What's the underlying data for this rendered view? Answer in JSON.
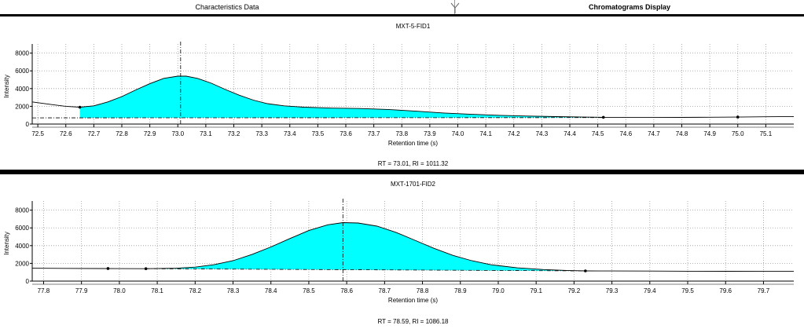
{
  "tabs": [
    {
      "label": "Characteristics Data"
    },
    {
      "label": "Chromatograms Display"
    }
  ],
  "chart_data": [
    {
      "type": "area",
      "title": "MXT-5-FID1",
      "xlabel": "Retention time (s)",
      "ylabel": "Intensity",
      "footer": "RT = 73.01, RI = 1011.32",
      "xlim": [
        72.48,
        75.2
      ],
      "ylim": [
        0,
        8500
      ],
      "x_ticks": [
        72.5,
        72.6,
        72.7,
        72.8,
        72.9,
        73.0,
        73.1,
        73.2,
        73.3,
        73.4,
        73.5,
        73.6,
        73.7,
        73.8,
        73.9,
        74.0,
        74.1,
        74.2,
        74.3,
        74.4,
        74.5,
        74.6,
        74.7,
        74.8,
        74.9,
        75.0,
        75.1
      ],
      "x_tick_labels": [
        "72.5",
        "72.6",
        "72.7",
        "72.8",
        "72.9",
        "73.0",
        "73.1",
        "73.2",
        "73.3",
        "73.4",
        "73.5",
        "73.6",
        "73.7",
        "73.8",
        "73.9",
        "74.0",
        "74.1",
        "74.2",
        "74.3",
        "74.4",
        "74.5",
        "74.6",
        "74.7",
        "74.8",
        "74.9",
        "75.0",
        "75.1"
      ],
      "y_ticks": [
        0,
        2000,
        4000,
        6000,
        8000
      ],
      "y_tick_labels": [
        "0",
        "2000",
        "4000",
        "6000",
        "8000"
      ],
      "grid": true,
      "peak_rt": 73.01,
      "fill_range": [
        72.65,
        74.52
      ],
      "fill_color": "#00ffff",
      "baseline": [
        [
          72.48,
          700
        ],
        [
          74.52,
          730
        ]
      ],
      "signal": [
        [
          72.48,
          2500
        ],
        [
          72.55,
          2200
        ],
        [
          72.6,
          2000
        ],
        [
          72.65,
          1900
        ],
        [
          72.7,
          2050
        ],
        [
          72.75,
          2500
        ],
        [
          72.8,
          3100
        ],
        [
          72.85,
          3850
        ],
        [
          72.9,
          4550
        ],
        [
          72.95,
          5150
        ],
        [
          73.0,
          5400
        ],
        [
          73.03,
          5400
        ],
        [
          73.07,
          5150
        ],
        [
          73.12,
          4600
        ],
        [
          73.17,
          3900
        ],
        [
          73.22,
          3250
        ],
        [
          73.27,
          2700
        ],
        [
          73.32,
          2300
        ],
        [
          73.38,
          2050
        ],
        [
          73.45,
          1900
        ],
        [
          73.55,
          1800
        ],
        [
          73.65,
          1750
        ],
        [
          73.75,
          1650
        ],
        [
          73.85,
          1450
        ],
        [
          73.95,
          1250
        ],
        [
          74.05,
          1100
        ],
        [
          74.15,
          980
        ],
        [
          74.25,
          900
        ],
        [
          74.35,
          840
        ],
        [
          74.45,
          790
        ],
        [
          74.52,
          760
        ],
        [
          74.6,
          740
        ],
        [
          74.7,
          740
        ],
        [
          74.8,
          750
        ],
        [
          74.9,
          770
        ],
        [
          75.0,
          790
        ],
        [
          75.1,
          820
        ],
        [
          75.2,
          850
        ]
      ],
      "markers": [
        [
          72.65,
          1900
        ],
        [
          74.52,
          760
        ],
        [
          75.0,
          790
        ]
      ]
    },
    {
      "type": "area",
      "title": "MXT-1701-FID2",
      "xlabel": "Retention time (s)",
      "ylabel": "Intensity",
      "footer": "RT = 78.59, RI = 1086.18",
      "xlim": [
        77.77,
        79.78
      ],
      "ylim": [
        0,
        8500
      ],
      "x_ticks": [
        77.8,
        77.9,
        78.0,
        78.1,
        78.2,
        78.3,
        78.4,
        78.5,
        78.6,
        78.7,
        78.8,
        78.9,
        79.0,
        79.1,
        79.2,
        79.3,
        79.4,
        79.5,
        79.6,
        79.7
      ],
      "x_tick_labels": [
        "77.8",
        "77.9",
        "78.0",
        "78.1",
        "78.2",
        "78.3",
        "78.4",
        "78.5",
        "78.6",
        "78.7",
        "78.8",
        "78.9",
        "79.0",
        "79.1",
        "79.2",
        "79.3",
        "79.4",
        "79.5",
        "79.6",
        "79.7"
      ],
      "y_ticks": [
        0,
        2000,
        4000,
        6000,
        8000
      ],
      "y_tick_labels": [
        "0",
        "2000",
        "4000",
        "6000",
        "8000"
      ],
      "grid": true,
      "peak_rt": 78.59,
      "fill_range": [
        78.07,
        79.23
      ],
      "fill_color": "#00ffff",
      "baseline": [
        [
          78.07,
          1400
        ],
        [
          79.23,
          1150
        ]
      ],
      "signal": [
        [
          77.77,
          1450
        ],
        [
          77.85,
          1430
        ],
        [
          77.95,
          1420
        ],
        [
          78.0,
          1410
        ],
        [
          78.07,
          1400
        ],
        [
          78.15,
          1450
        ],
        [
          78.2,
          1580
        ],
        [
          78.25,
          1850
        ],
        [
          78.3,
          2300
        ],
        [
          78.35,
          3000
        ],
        [
          78.4,
          3850
        ],
        [
          78.45,
          4800
        ],
        [
          78.5,
          5700
        ],
        [
          78.55,
          6350
        ],
        [
          78.59,
          6600
        ],
        [
          78.63,
          6550
        ],
        [
          78.68,
          6200
        ],
        [
          78.73,
          5500
        ],
        [
          78.78,
          4600
        ],
        [
          78.83,
          3700
        ],
        [
          78.88,
          2900
        ],
        [
          78.93,
          2300
        ],
        [
          78.98,
          1850
        ],
        [
          79.05,
          1500
        ],
        [
          79.12,
          1300
        ],
        [
          79.18,
          1200
        ],
        [
          79.23,
          1150
        ],
        [
          79.3,
          1140
        ],
        [
          79.4,
          1130
        ],
        [
          79.5,
          1120
        ],
        [
          79.6,
          1110
        ],
        [
          79.7,
          1100
        ],
        [
          79.78,
          1100
        ]
      ],
      "markers": [
        [
          77.97,
          1420
        ],
        [
          78.07,
          1400
        ],
        [
          79.23,
          1150
        ]
      ]
    }
  ]
}
